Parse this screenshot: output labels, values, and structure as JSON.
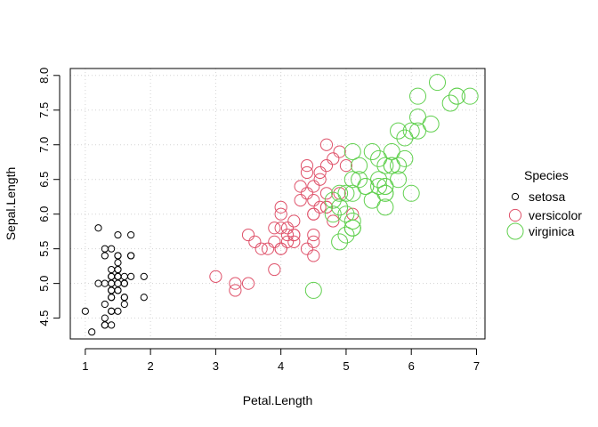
{
  "chart_data": {
    "type": "scatter",
    "title": "",
    "xlabel": "Petal.Length",
    "ylabel": "Sepal.Length",
    "xlim": [
      0.77,
      7.13
    ],
    "ylim": [
      4.2,
      8.1
    ],
    "x_ticks": [
      1,
      2,
      3,
      4,
      5,
      6,
      7
    ],
    "y_ticks": [
      4.5,
      5.0,
      5.5,
      6.0,
      6.5,
      7.0,
      7.5,
      8.0
    ],
    "x_tick_labels": [
      "1",
      "2",
      "3",
      "4",
      "5",
      "6",
      "7"
    ],
    "y_tick_labels": [
      "4.5",
      "5.0",
      "5.5",
      "6.0",
      "6.5",
      "7.0",
      "7.5",
      "8.0"
    ],
    "grid": true,
    "legend": {
      "title": "Species",
      "placement": "right"
    },
    "series": [
      {
        "name": "setosa",
        "color": "#000000",
        "marker": "open-circle-small",
        "points": [
          [
            1.4,
            5.1
          ],
          [
            1.4,
            4.9
          ],
          [
            1.3,
            4.7
          ],
          [
            1.5,
            4.6
          ],
          [
            1.4,
            5.0
          ],
          [
            1.7,
            5.4
          ],
          [
            1.4,
            4.6
          ],
          [
            1.5,
            5.0
          ],
          [
            1.4,
            4.4
          ],
          [
            1.5,
            4.9
          ],
          [
            1.5,
            5.4
          ],
          [
            1.6,
            4.8
          ],
          [
            1.4,
            4.8
          ],
          [
            1.1,
            4.3
          ],
          [
            1.2,
            5.8
          ],
          [
            1.5,
            5.7
          ],
          [
            1.3,
            5.4
          ],
          [
            1.4,
            5.1
          ],
          [
            1.7,
            5.7
          ],
          [
            1.5,
            5.1
          ],
          [
            1.7,
            5.4
          ],
          [
            1.5,
            5.1
          ],
          [
            1.0,
            4.6
          ],
          [
            1.7,
            5.1
          ],
          [
            1.9,
            4.8
          ],
          [
            1.6,
            5.0
          ],
          [
            1.6,
            5.0
          ],
          [
            1.5,
            5.2
          ],
          [
            1.4,
            5.2
          ],
          [
            1.6,
            4.7
          ],
          [
            1.6,
            4.8
          ],
          [
            1.5,
            5.4
          ],
          [
            1.5,
            5.2
          ],
          [
            1.4,
            5.5
          ],
          [
            1.5,
            4.9
          ],
          [
            1.2,
            5.0
          ],
          [
            1.3,
            5.5
          ],
          [
            1.4,
            4.9
          ],
          [
            1.3,
            4.4
          ],
          [
            1.5,
            5.1
          ],
          [
            1.3,
            5.0
          ],
          [
            1.3,
            4.5
          ],
          [
            1.3,
            4.4
          ],
          [
            1.6,
            5.0
          ],
          [
            1.9,
            5.1
          ],
          [
            1.4,
            4.8
          ],
          [
            1.6,
            5.1
          ],
          [
            1.4,
            4.6
          ],
          [
            1.5,
            5.3
          ],
          [
            1.4,
            5.0
          ]
        ]
      },
      {
        "name": "versicolor",
        "color": "#DF536B",
        "marker": "open-circle-medium",
        "points": [
          [
            4.7,
            7.0
          ],
          [
            4.5,
            6.4
          ],
          [
            4.9,
            6.9
          ],
          [
            4.0,
            5.5
          ],
          [
            4.6,
            6.5
          ],
          [
            4.5,
            5.7
          ],
          [
            4.7,
            6.3
          ],
          [
            3.3,
            4.9
          ],
          [
            4.6,
            6.6
          ],
          [
            3.9,
            5.2
          ],
          [
            3.5,
            5.0
          ],
          [
            4.2,
            5.9
          ],
          [
            4.0,
            6.0
          ],
          [
            4.7,
            6.1
          ],
          [
            3.6,
            5.6
          ],
          [
            4.4,
            6.7
          ],
          [
            4.5,
            5.6
          ],
          [
            4.1,
            5.8
          ],
          [
            4.5,
            6.2
          ],
          [
            3.9,
            5.6
          ],
          [
            4.8,
            5.9
          ],
          [
            4.0,
            6.1
          ],
          [
            4.9,
            6.3
          ],
          [
            4.7,
            6.1
          ],
          [
            4.3,
            6.4
          ],
          [
            4.4,
            6.6
          ],
          [
            4.8,
            6.8
          ],
          [
            5.0,
            6.7
          ],
          [
            4.5,
            6.0
          ],
          [
            3.5,
            5.7
          ],
          [
            3.8,
            5.5
          ],
          [
            3.7,
            5.5
          ],
          [
            3.9,
            5.8
          ],
          [
            5.1,
            6.0
          ],
          [
            4.5,
            5.4
          ],
          [
            4.5,
            6.0
          ],
          [
            4.7,
            6.7
          ],
          [
            4.4,
            6.3
          ],
          [
            4.1,
            5.6
          ],
          [
            4.0,
            5.5
          ],
          [
            4.4,
            5.5
          ],
          [
            4.6,
            6.1
          ],
          [
            4.0,
            5.8
          ],
          [
            3.3,
            5.0
          ],
          [
            4.2,
            5.6
          ],
          [
            4.2,
            5.7
          ],
          [
            4.2,
            5.7
          ],
          [
            4.3,
            6.2
          ],
          [
            3.0,
            5.1
          ],
          [
            4.1,
            5.7
          ]
        ]
      },
      {
        "name": "virginica",
        "color": "#61D04F",
        "marker": "open-circle-large",
        "points": [
          [
            6.0,
            6.3
          ],
          [
            5.1,
            5.8
          ],
          [
            5.9,
            7.1
          ],
          [
            5.6,
            6.3
          ],
          [
            5.8,
            6.5
          ],
          [
            6.6,
            7.6
          ],
          [
            4.5,
            4.9
          ],
          [
            6.3,
            7.3
          ],
          [
            5.8,
            6.7
          ],
          [
            6.1,
            7.2
          ],
          [
            5.1,
            6.5
          ],
          [
            5.3,
            6.4
          ],
          [
            5.5,
            6.8
          ],
          [
            5.0,
            5.7
          ],
          [
            5.1,
            5.8
          ],
          [
            5.3,
            6.4
          ],
          [
            5.5,
            6.5
          ],
          [
            6.7,
            7.7
          ],
          [
            6.9,
            7.7
          ],
          [
            5.0,
            6.0
          ],
          [
            5.7,
            6.9
          ],
          [
            4.9,
            5.6
          ],
          [
            6.7,
            7.7
          ],
          [
            4.9,
            6.3
          ],
          [
            5.7,
            6.7
          ],
          [
            6.0,
            7.2
          ],
          [
            4.8,
            6.2
          ],
          [
            4.9,
            6.1
          ],
          [
            5.6,
            6.4
          ],
          [
            5.8,
            7.2
          ],
          [
            6.1,
            7.4
          ],
          [
            6.4,
            7.9
          ],
          [
            5.6,
            6.4
          ],
          [
            5.1,
            6.3
          ],
          [
            5.6,
            6.1
          ],
          [
            6.1,
            7.7
          ],
          [
            5.6,
            6.3
          ],
          [
            5.5,
            6.4
          ],
          [
            4.8,
            6.0
          ],
          [
            5.4,
            6.9
          ],
          [
            5.6,
            6.7
          ],
          [
            5.1,
            6.9
          ],
          [
            5.1,
            5.8
          ],
          [
            5.9,
            6.8
          ],
          [
            5.7,
            6.7
          ],
          [
            5.2,
            6.7
          ],
          [
            5.0,
            6.3
          ],
          [
            5.2,
            6.5
          ],
          [
            5.4,
            6.2
          ],
          [
            5.1,
            5.9
          ]
        ]
      }
    ]
  }
}
